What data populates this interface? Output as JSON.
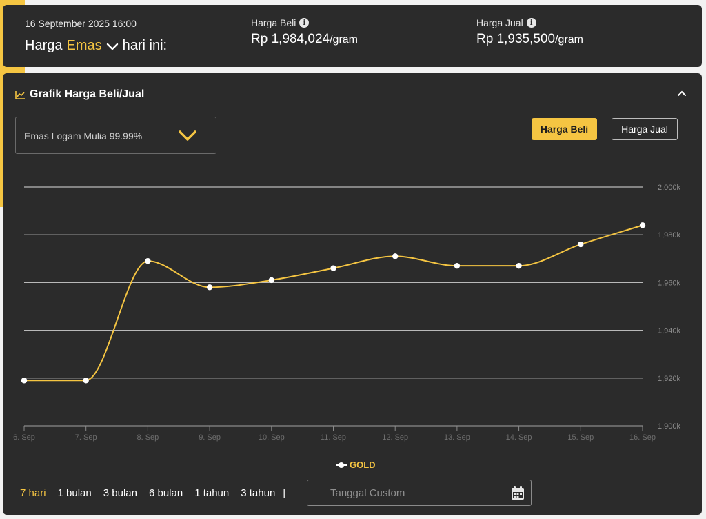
{
  "header": {
    "timestamp": "16 September 2025 16:00",
    "title_prefix": "Harga",
    "metal": "Emas",
    "title_suffix": "hari ini:",
    "buy_label": "Harga Beli",
    "buy_price": "Rp 1,984,024",
    "sell_label": "Harga Jual",
    "sell_price": "Rp 1,935,500",
    "unit": "/gram"
  },
  "section": {
    "title": "Grafik Harga Beli/Jual",
    "product_select": "Emas Logam Mulia 99.99%",
    "toggle_buy": "Harga Beli",
    "toggle_sell": "Harga Jual"
  },
  "periods": [
    "7 hari",
    "1 bulan",
    "3 bulan",
    "6 bulan",
    "1 tahun",
    "3 tahun"
  ],
  "period_separator": "|",
  "custom_date_placeholder": "Tanggal Custom",
  "colors": {
    "accent": "#f5c542",
    "panel": "#2b2b2b",
    "grid": "#bdbdbd"
  },
  "chart_data": {
    "type": "line",
    "title": "",
    "xlabel": "",
    "ylabel": "",
    "categories": [
      "6. Sep",
      "7. Sep",
      "8. Sep",
      "9. Sep",
      "10. Sep",
      "11. Sep",
      "12. Sep",
      "13. Sep",
      "14. Sep",
      "15. Sep",
      "16. Sep"
    ],
    "series": [
      {
        "name": "GOLD",
        "values": [
          1919,
          1919,
          1969,
          1958,
          1961,
          1966,
          1971,
          1967,
          1967,
          1976,
          1984
        ]
      }
    ],
    "ylim": [
      1900,
      2000
    ],
    "yticks": [
      1900,
      1920,
      1940,
      1960,
      1980,
      2000
    ],
    "ytick_labels": [
      "1,900k",
      "1,920k",
      "1,940k",
      "1,960k",
      "1,980k",
      "2,000k"
    ],
    "grid": true,
    "legend": "bottom"
  }
}
